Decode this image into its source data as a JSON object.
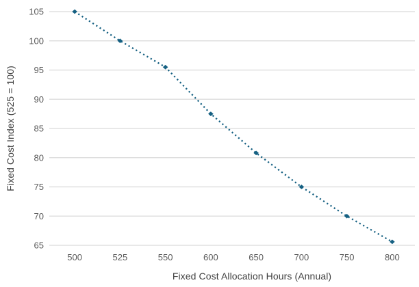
{
  "chart_data": {
    "type": "line",
    "title": "",
    "xlabel": "Fixed Cost Allocation Hours (Annual)",
    "ylabel": "Fixed Cost Index (525 = 100)",
    "categories": [
      "500",
      "525",
      "550",
      "600",
      "650",
      "700",
      "750",
      "800"
    ],
    "values": [
      105,
      100,
      95.5,
      87.5,
      80.8,
      75,
      70,
      65.6
    ],
    "yticks": [
      65,
      70,
      75,
      80,
      85,
      90,
      95,
      100,
      105
    ],
    "ylim": [
      65,
      105
    ],
    "grid": "horizontal-only",
    "legend_position": "none",
    "line_style": "dotted",
    "marker": "diamond",
    "colors": {
      "line": "#156082",
      "grid": "#d9d9d9",
      "tick_label": "#595959",
      "axis_title": "#404040",
      "background": "#ffffff"
    }
  }
}
